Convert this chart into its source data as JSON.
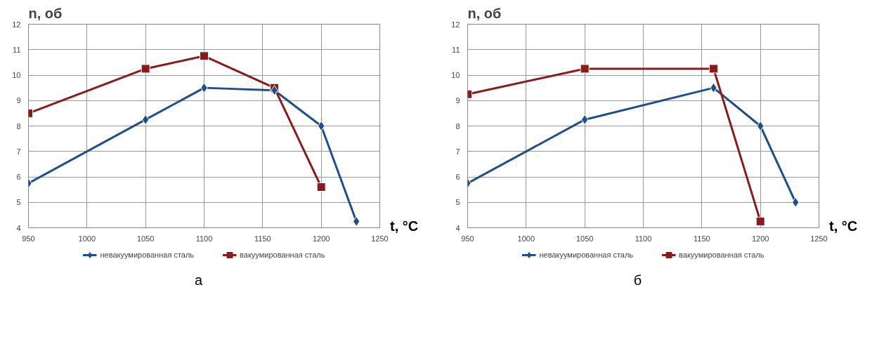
{
  "chart_data": [
    {
      "type": "line",
      "xlabel": "t, °C",
      "ylabel": "n, об",
      "annotations": [
        "а"
      ],
      "xlim": [
        950,
        1250
      ],
      "xticks": [
        950,
        1000,
        1050,
        1100,
        1150,
        1200,
        1250
      ],
      "ylim": [
        4,
        12
      ],
      "yticks": [
        4,
        5,
        6,
        7,
        8,
        9,
        10,
        11,
        12
      ],
      "grid": true,
      "legend": "bottom",
      "series": [
        {
          "name": "невакуумированная сталь",
          "color": "#1f4e8c",
          "marker": "diamond",
          "x": [
            950,
            1050,
            1100,
            1160,
            1200,
            1230
          ],
          "values": [
            5.75,
            8.25,
            9.5,
            9.4,
            8,
            4.25
          ]
        },
        {
          "name": "вакуумированная сталь",
          "color": "#8b1a1a",
          "marker": "square",
          "x": [
            950,
            1050,
            1100,
            1160,
            1200
          ],
          "values": [
            8.5,
            10.25,
            10.75,
            9.5,
            5.6
          ]
        }
      ]
    },
    {
      "type": "line",
      "xlabel": "t, °C",
      "ylabel": "n, об",
      "annotations": [
        "б"
      ],
      "xlim": [
        950,
        1250
      ],
      "xticks": [
        950,
        1000,
        1050,
        1100,
        1150,
        1200,
        1250
      ],
      "ylim": [
        4,
        12
      ],
      "yticks": [
        4,
        5,
        6,
        7,
        8,
        9,
        10,
        11,
        12
      ],
      "grid": true,
      "legend": "bottom",
      "series": [
        {
          "name": "невакуумированная сталь",
          "color": "#1f4e8c",
          "marker": "diamond",
          "x": [
            950,
            1050,
            1160,
            1200,
            1230
          ],
          "values": [
            5.75,
            8.25,
            9.5,
            8,
            5
          ]
        },
        {
          "name": "вакуумированная сталь",
          "color": "#8b1a1a",
          "marker": "square",
          "x": [
            950,
            1050,
            1160,
            1200
          ],
          "values": [
            9.25,
            10.25,
            10.25,
            4.25
          ]
        }
      ]
    }
  ]
}
